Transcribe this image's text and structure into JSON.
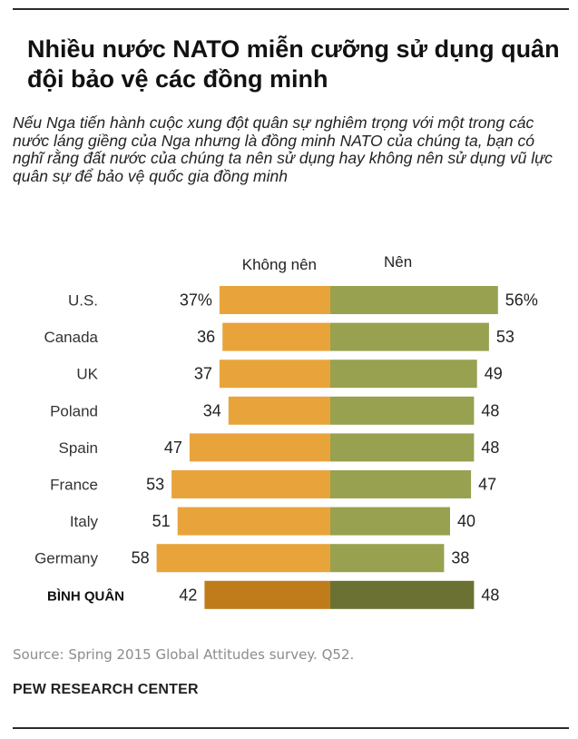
{
  "title": "Nhiều nước NATO miễn cưỡng sử dụng quân đội bảo vệ các đồng minh",
  "subtitle": "Nếu Nga tiến hành cuộc xung đột quân sự nghiêm trọng với một trong các nước láng giềng của Nga nhưng là đồng minh NATO của chúng ta, bạn có nghĩ rằng đất nước của chúng ta nên sử dụng hay không nên sử dụng vũ lực quân sự để bảo vệ quốc gia đồng minh",
  "source": "Source: Spring 2015 Global Attitudes survey. Q52.",
  "organization": "PEW RESEARCH CENTER",
  "chart_data": {
    "type": "bar",
    "orientation": "horizontal-diverging",
    "categories": [
      "U.S.",
      "Canada",
      "UK",
      "Poland",
      "Spain",
      "France",
      "Italy",
      "Germany",
      "BÌNH QUÂN"
    ],
    "series": [
      {
        "name": "Không nên",
        "values": [
          37,
          36,
          37,
          34,
          47,
          53,
          51,
          58,
          42
        ],
        "labels": [
          "37%",
          "36",
          "37",
          "34",
          "47",
          "53",
          "51",
          "58",
          "42"
        ],
        "color": "#e8a43a",
        "highlight_color": "#c07c1b"
      },
      {
        "name": "Nên",
        "values": [
          56,
          53,
          49,
          48,
          48,
          47,
          40,
          38,
          48
        ],
        "labels": [
          "56%",
          "53",
          "49",
          "48",
          "48",
          "47",
          "40",
          "38",
          "48"
        ],
        "color": "#97a14f",
        "highlight_color": "#6b7133"
      }
    ],
    "highlight_category": "BÌNH QUÂN",
    "legend_position": "top"
  }
}
